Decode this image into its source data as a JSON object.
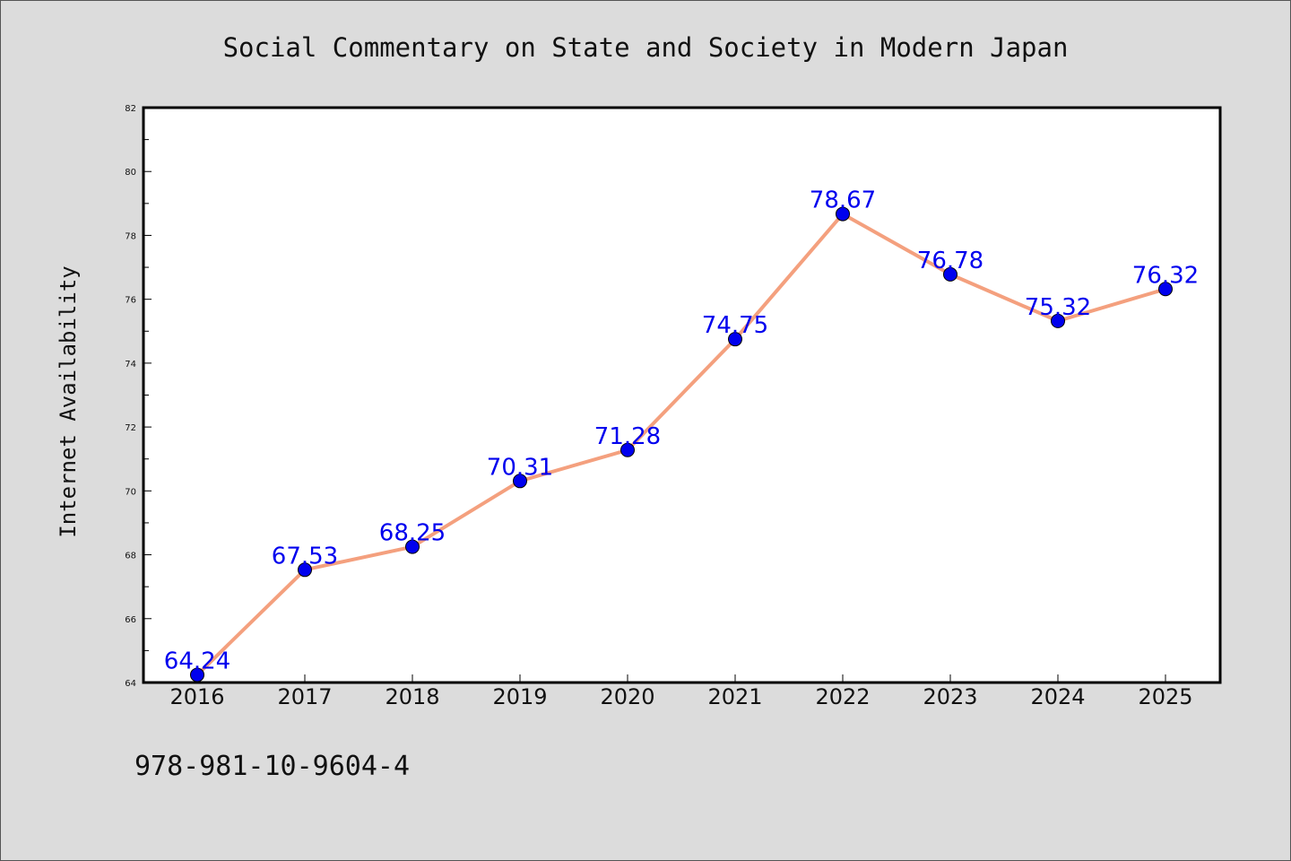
{
  "chart_data": {
    "type": "line",
    "title": "Social Commentary on State and Society in Modern Japan",
    "xlabel": "",
    "ylabel": "Internet Availability",
    "categories": [
      "2016",
      "2017",
      "2018",
      "2019",
      "2020",
      "2021",
      "2022",
      "2023",
      "2024",
      "2025"
    ],
    "series": [
      {
        "values": [
          64.24,
          67.53,
          68.25,
          70.31,
          71.28,
          74.75,
          78.67,
          76.78,
          75.32,
          76.32
        ],
        "line_color": "#f4a07e",
        "marker_color": "#0000ee"
      }
    ],
    "data_labels": [
      "64.24",
      "67.53",
      "68.25",
      "70.31",
      "71.28",
      "74.75",
      "78.67",
      "76.78",
      "75.32",
      "76.32"
    ],
    "data_label_color": "#0000ee",
    "ylim": [
      64,
      82
    ],
    "yticks": [
      "64",
      "66",
      "68",
      "70",
      "72",
      "74",
      "76",
      "78",
      "80",
      "82"
    ],
    "grid": false,
    "legend": "none"
  },
  "footer_text": "978-981-10-9604-4"
}
